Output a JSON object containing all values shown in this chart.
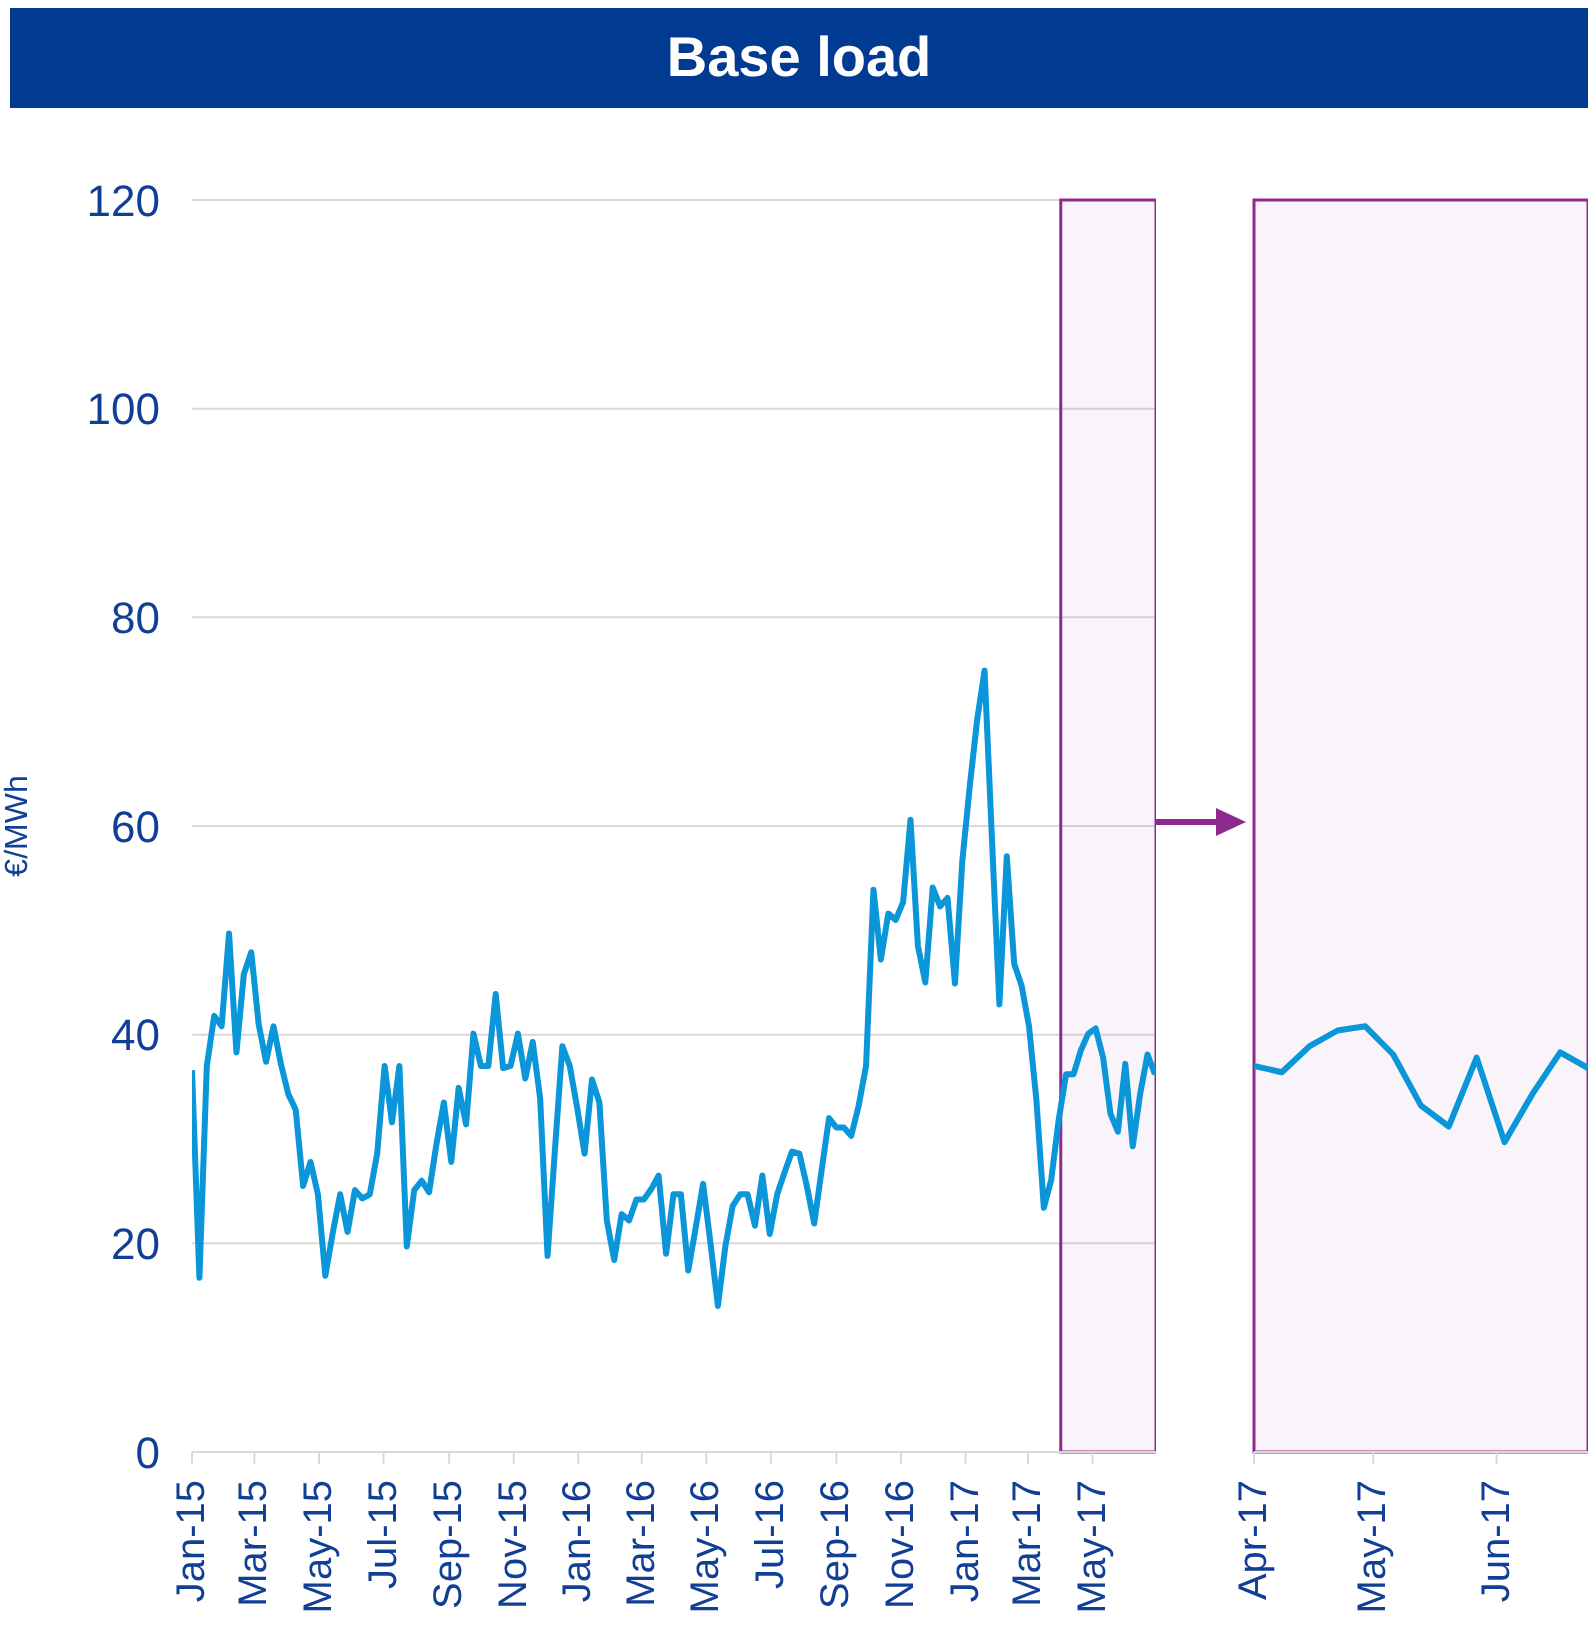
{
  "chart_data": [
    {
      "type": "line",
      "title": "Base load",
      "ylabel": "€/MWh",
      "color": "#0a96d8",
      "x": [
        "2015-01-01",
        "2015-01-08",
        "2015-01-15",
        "2015-01-22",
        "2015-01-29",
        "2015-02-05",
        "2015-02-12",
        "2015-02-19",
        "2015-02-26",
        "2015-03-05",
        "2015-03-12",
        "2015-03-19",
        "2015-03-26",
        "2015-04-02",
        "2015-04-09",
        "2015-04-16",
        "2015-04-23",
        "2015-04-30",
        "2015-05-07",
        "2015-05-14",
        "2015-05-21",
        "2015-05-28",
        "2015-06-04",
        "2015-06-11",
        "2015-06-18",
        "2015-06-25",
        "2015-07-02",
        "2015-07-09",
        "2015-07-16",
        "2015-07-23",
        "2015-07-30",
        "2015-08-06",
        "2015-08-13",
        "2015-08-20",
        "2015-08-27",
        "2015-09-03",
        "2015-09-10",
        "2015-09-17",
        "2015-09-24",
        "2015-10-01",
        "2015-10-08",
        "2015-10-15",
        "2015-10-22",
        "2015-10-29",
        "2015-11-05",
        "2015-11-12",
        "2015-11-19",
        "2015-11-26",
        "2015-12-03",
        "2015-12-10",
        "2015-12-17",
        "2015-12-24",
        "2015-12-31",
        "2016-01-07",
        "2016-01-14",
        "2016-01-21",
        "2016-01-28",
        "2016-02-04",
        "2016-02-11",
        "2016-02-18",
        "2016-02-25",
        "2016-03-03",
        "2016-03-10",
        "2016-03-17",
        "2016-03-24",
        "2016-03-31",
        "2016-04-07",
        "2016-04-14",
        "2016-04-21",
        "2016-04-28",
        "2016-05-05",
        "2016-05-12",
        "2016-05-19",
        "2016-05-26",
        "2016-06-02",
        "2016-06-09",
        "2016-06-16",
        "2016-06-23",
        "2016-06-30",
        "2016-07-07",
        "2016-07-14",
        "2016-07-21",
        "2016-07-28",
        "2016-08-04",
        "2016-08-11",
        "2016-08-18",
        "2016-08-25",
        "2016-09-01",
        "2016-09-08",
        "2016-09-15",
        "2016-09-22",
        "2016-09-29",
        "2016-10-06",
        "2016-10-13",
        "2016-10-20",
        "2016-10-27",
        "2016-11-03",
        "2016-11-10",
        "2016-11-17",
        "2016-11-24",
        "2016-12-01",
        "2016-12-08",
        "2016-12-15",
        "2016-12-22",
        "2016-12-29",
        "2017-01-05",
        "2017-01-12",
        "2017-01-19",
        "2017-01-26",
        "2017-02-02",
        "2017-02-09",
        "2017-02-16",
        "2017-02-23",
        "2017-03-02",
        "2017-03-09",
        "2017-03-16",
        "2017-03-23",
        "2017-03-30",
        "2017-04-06",
        "2017-04-13",
        "2017-04-20",
        "2017-04-27",
        "2017-05-04",
        "2017-05-11",
        "2017-05-18",
        "2017-05-25",
        "2017-06-01",
        "2017-06-08",
        "2017-06-15",
        "2017-06-22",
        "2017-06-29"
      ],
      "values": [
        36.6,
        16.7,
        37,
        41.8,
        40.8,
        49.7,
        38.3,
        45.8,
        47.9,
        41,
        37.4,
        40.8,
        37.2,
        34.3,
        32.8,
        25.5,
        27.8,
        24.7,
        16.9,
        21,
        24.7,
        21.1,
        25.1,
        24.3,
        24.7,
        28.6,
        37,
        31.6,
        37,
        19.7,
        25.1,
        26,
        24.9,
        29.5,
        33.5,
        27.8,
        34.9,
        31.4,
        40.1,
        37,
        37,
        43.9,
        36.8,
        37,
        40.1,
        35.8,
        39.3,
        33.9,
        18.8,
        29,
        38.9,
        37,
        33,
        28.6,
        35.7,
        33.5,
        22.2,
        18.4,
        22.8,
        22.2,
        24.2,
        24.2,
        25.2,
        26.5,
        19,
        24.7,
        24.7,
        17.4,
        21.5,
        25.7,
        20,
        14,
        19.7,
        23.6,
        24.7,
        24.7,
        21.7,
        26.5,
        20.9,
        24.7,
        26.8,
        28.8,
        28.6,
        25.5,
        21.9,
        27,
        32,
        31.1,
        31.1,
        30.3,
        33.2,
        37,
        53.9,
        47.2,
        51.6,
        51,
        52.7,
        60.6,
        48.5,
        45,
        54.1,
        52.3,
        53.1,
        44.9,
        56.7,
        63.8,
        70.2,
        74.9,
        58.7,
        42.9,
        57.1,
        46.8,
        44.7,
        40.8,
        33.7,
        23.4,
        26.1,
        31.8,
        36.2,
        36.2,
        38.5,
        40.1,
        40.6,
        37.8,
        32.4,
        30.7,
        37.2,
        29.3,
        34.3,
        38.1,
        36.2
      ],
      "xlim": [
        "2015-01-01",
        "2017-06-30"
      ],
      "xticks": [
        {
          "value": "2015-01-01",
          "label": "Jan-15"
        },
        {
          "value": "2015-03-01",
          "label": "Mar-15"
        },
        {
          "value": "2015-05-01",
          "label": "May-15"
        },
        {
          "value": "2015-07-01",
          "label": "Jul-15"
        },
        {
          "value": "2015-09-01",
          "label": "Sep-15"
        },
        {
          "value": "2015-11-01",
          "label": "Nov-15"
        },
        {
          "value": "2016-01-01",
          "label": "Jan-16"
        },
        {
          "value": "2016-03-01",
          "label": "Mar-16"
        },
        {
          "value": "2016-05-01",
          "label": "May-16"
        },
        {
          "value": "2016-07-01",
          "label": "Jul-16"
        },
        {
          "value": "2016-09-01",
          "label": "Sep-16"
        },
        {
          "value": "2016-11-01",
          "label": "Nov-16"
        },
        {
          "value": "2017-01-01",
          "label": "Jan-17"
        },
        {
          "value": "2017-03-01",
          "label": "Mar-17"
        },
        {
          "value": "2017-05-01",
          "label": "May-17"
        }
      ],
      "ylim": [
        0,
        120
      ],
      "yticks": [
        0,
        20,
        40,
        60,
        80,
        100,
        120
      ],
      "grid": "y",
      "bands": [
        {
          "axis": "x",
          "from": "2017-04-01",
          "to": "2017-06-30",
          "color": "#8e2a8e"
        }
      ]
    },
    {
      "type": "line",
      "color": "#0a96d8",
      "x": [
        "2017-04-01",
        "2017-04-08",
        "2017-04-15",
        "2017-04-22",
        "2017-04-29",
        "2017-05-06",
        "2017-05-13",
        "2017-05-20",
        "2017-05-27",
        "2017-06-03",
        "2017-06-10",
        "2017-06-17",
        "2017-06-24"
      ],
      "values": [
        37,
        36.4,
        38.9,
        40.4,
        40.8,
        38.1,
        33.2,
        31.2,
        37.8,
        29.7,
        34.3,
        38.3,
        36.8
      ],
      "xlim": [
        "2017-04-01",
        "2017-06-24"
      ],
      "xticks": [
        {
          "value": "2017-04-01",
          "label": "Apr-17"
        },
        {
          "value": "2017-05-01",
          "label": "May-17"
        },
        {
          "value": "2017-06-01",
          "label": "Jun-17"
        }
      ],
      "ylim": [
        0,
        120
      ],
      "yticks": [
        0,
        20,
        40,
        60,
        80,
        100,
        120
      ],
      "grid": "y",
      "tick_labels": "x",
      "bands": [
        {
          "axis": "x",
          "from": "2017-04-01",
          "to": "2017-06-24",
          "color": "#8e2a8e"
        }
      ]
    }
  ]
}
